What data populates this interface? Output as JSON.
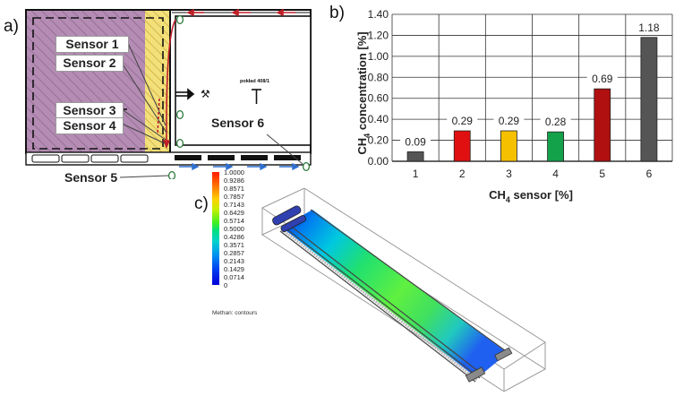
{
  "panels": {
    "a": "a)",
    "b": "b)",
    "c": "c)"
  },
  "panel_a": {
    "sensors": [
      "Sensor 1",
      "Sensor 2",
      "Sensor 3",
      "Sensor 4",
      "Sensor 5",
      "Sensor 6"
    ],
    "small_text": "pokład 408/1",
    "colors": {
      "goaf": "#b48cb4",
      "zone": "#f3e07a",
      "airflow_return": "#c0202a",
      "airflow_intake": "#2f6fd0"
    }
  },
  "chart_data": {
    "type": "bar",
    "categories": [
      "1",
      "2",
      "3",
      "4",
      "5",
      "6"
    ],
    "values": [
      0.09,
      0.29,
      0.29,
      0.28,
      0.69,
      1.18
    ],
    "data_labels": [
      "0.09",
      "0.29",
      "0.29",
      "0.28",
      "0.69",
      "1.18"
    ],
    "colors": [
      "#555555",
      "#e01010",
      "#f5c000",
      "#13a24a",
      "#b01010",
      "#555555"
    ],
    "ylim": [
      0,
      1.4
    ],
    "yticks": [
      "0.00",
      "0.20",
      "0.40",
      "0.60",
      "0.80",
      "1.00",
      "1.20",
      "1.40"
    ],
    "ylabel_main": "CH",
    "ylabel_sub": "4",
    "ylabel_rest": " concentration [%]",
    "xlabel_main": "CH",
    "xlabel_sub": "4",
    "xlabel_rest": " sensor [%]",
    "grid": true
  },
  "colorbar": {
    "ticks": [
      "1.0000",
      "0.9286",
      "0.8571",
      "0.7857",
      "0.7143",
      "0.6429",
      "0.5714",
      "0.5000",
      "0.4286",
      "0.3571",
      "0.2857",
      "0.2143",
      "0.1429",
      "0.0714",
      "0"
    ],
    "caption": "Methan: contours"
  }
}
